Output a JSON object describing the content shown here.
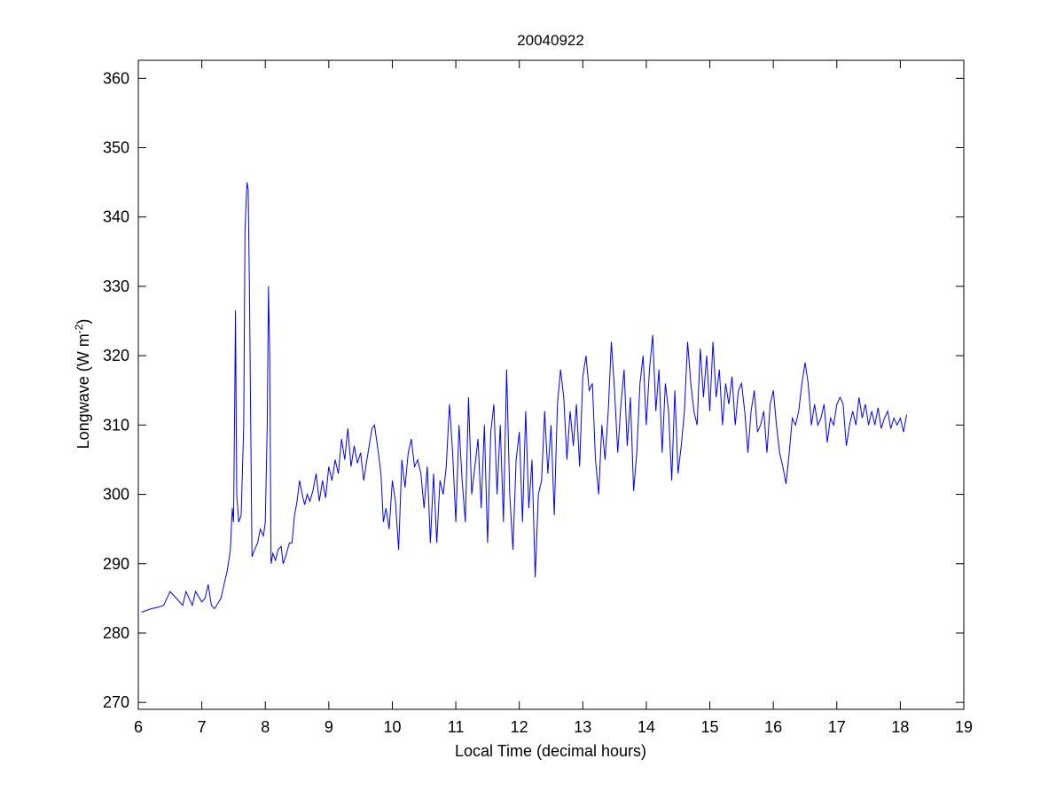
{
  "chart_data": {
    "type": "line",
    "title": "20040922",
    "xlabel": "Local Time (decimal hours)",
    "ylabel": {
      "base": "Longwave (W m",
      "sup": "-2",
      "close": ")"
    },
    "xlim": [
      6,
      19
    ],
    "ylim": [
      269,
      362.6
    ],
    "xticks": [
      6,
      7,
      8,
      9,
      10,
      11,
      12,
      13,
      14,
      15,
      16,
      17,
      18,
      19
    ],
    "yticks": [
      270,
      280,
      290,
      300,
      310,
      320,
      330,
      340,
      350,
      360
    ],
    "grid": false,
    "line_color": "#0000ff",
    "series": [
      {
        "name": "Longwave",
        "x": [
          6.05,
          6.2,
          6.3,
          6.4,
          6.5,
          6.6,
          6.7,
          6.75,
          6.85,
          6.9,
          7.0,
          7.05,
          7.1,
          7.15,
          7.2,
          7.3,
          7.35,
          7.4,
          7.45,
          7.48,
          7.5,
          7.52,
          7.53,
          7.55,
          7.58,
          7.62,
          7.66,
          7.68,
          7.71,
          7.73,
          7.75,
          7.77,
          7.79,
          7.83,
          7.88,
          7.92,
          7.97,
          8.0,
          8.03,
          8.05,
          8.07,
          8.09,
          8.12,
          8.16,
          8.2,
          8.25,
          8.28,
          8.32,
          8.38,
          8.42,
          8.46,
          8.5,
          8.54,
          8.58,
          8.62,
          8.66,
          8.7,
          8.75,
          8.8,
          8.85,
          8.9,
          8.95,
          9.0,
          9.05,
          9.1,
          9.15,
          9.2,
          9.25,
          9.3,
          9.35,
          9.4,
          9.45,
          9.5,
          9.55,
          9.6,
          9.68,
          9.72,
          9.78,
          9.82,
          9.86,
          9.9,
          9.95,
          10.0,
          10.05,
          10.1,
          10.15,
          10.2,
          10.25,
          10.3,
          10.35,
          10.4,
          10.45,
          10.5,
          10.55,
          10.6,
          10.65,
          10.7,
          10.75,
          10.8,
          10.85,
          10.9,
          10.95,
          11.0,
          11.05,
          11.1,
          11.15,
          11.2,
          11.25,
          11.3,
          11.35,
          11.4,
          11.45,
          11.5,
          11.55,
          11.6,
          11.65,
          11.7,
          11.75,
          11.8,
          11.85,
          11.9,
          11.95,
          12.0,
          12.05,
          12.1,
          12.15,
          12.2,
          12.25,
          12.3,
          12.35,
          12.4,
          12.45,
          12.5,
          12.55,
          12.6,
          12.65,
          12.7,
          12.75,
          12.8,
          12.85,
          12.9,
          12.95,
          13.0,
          13.05,
          13.1,
          13.15,
          13.2,
          13.25,
          13.3,
          13.35,
          13.4,
          13.45,
          13.5,
          13.55,
          13.6,
          13.65,
          13.7,
          13.75,
          13.8,
          13.85,
          13.9,
          13.95,
          14.0,
          14.05,
          14.1,
          14.15,
          14.2,
          14.25,
          14.3,
          14.35,
          14.4,
          14.45,
          14.5,
          14.55,
          14.6,
          14.65,
          14.7,
          14.75,
          14.8,
          14.85,
          14.9,
          14.95,
          15.0,
          15.05,
          15.1,
          15.15,
          15.2,
          15.25,
          15.3,
          15.35,
          15.4,
          15.45,
          15.5,
          15.55,
          15.6,
          15.65,
          15.7,
          15.75,
          15.8,
          15.85,
          15.9,
          15.95,
          16.0,
          16.05,
          16.1,
          16.15,
          16.2,
          16.25,
          16.3,
          16.35,
          16.4,
          16.45,
          16.5,
          16.55,
          16.6,
          16.65,
          16.7,
          16.75,
          16.8,
          16.85,
          16.9,
          16.95,
          17.0,
          17.05,
          17.1,
          17.15,
          17.2,
          17.25,
          17.3,
          17.35,
          17.4,
          17.45,
          17.5,
          17.55,
          17.6,
          17.65,
          17.7,
          17.75,
          17.8,
          17.85,
          17.9,
          17.95,
          18.0,
          18.05,
          18.1
        ],
        "y": [
          283,
          283.5,
          283.7,
          284,
          286,
          285,
          284,
          286,
          284,
          286,
          284.5,
          285,
          287,
          284,
          283.5,
          285,
          287,
          289,
          292,
          298,
          296,
          316,
          326.5,
          300,
          296,
          297,
          310,
          338,
          345,
          344,
          330,
          310,
          291,
          292,
          293,
          295,
          294,
          296,
          310,
          330,
          320,
          290,
          291.5,
          290.5,
          292,
          292.5,
          290,
          291,
          293,
          293,
          297,
          299,
          302,
          300,
          298.5,
          300,
          299,
          300.5,
          303,
          299,
          302,
          299.5,
          304,
          302,
          305,
          303,
          308,
          305,
          309.5,
          304,
          307,
          304.5,
          306,
          302,
          305,
          309.5,
          310,
          306,
          303,
          296,
          298,
          295,
          302,
          299,
          292,
          305,
          301,
          306,
          308,
          304,
          305,
          303,
          298,
          304,
          293,
          303,
          293,
          302,
          300,
          304,
          313,
          306,
          296,
          310,
          302,
          296,
          314,
          300,
          304,
          308,
          298,
          310,
          293,
          309,
          313,
          300,
          310,
          296,
          318,
          300,
          292,
          305,
          309,
          296,
          312,
          298,
          305,
          288,
          300,
          302,
          312,
          303,
          310,
          297,
          313,
          318,
          314,
          305,
          312,
          307,
          313,
          304,
          317,
          320,
          315,
          316,
          305,
          300,
          310,
          305,
          312,
          322,
          315,
          306,
          313,
          318,
          307,
          314,
          300.5,
          306,
          316,
          320,
          310,
          318,
          323,
          312,
          318,
          306,
          316,
          312,
          302,
          315,
          303,
          307,
          312,
          322,
          316,
          312,
          310,
          321,
          314,
          320,
          312,
          322,
          314,
          318,
          310,
          316,
          313,
          317,
          310,
          315,
          316,
          312,
          306,
          312,
          315,
          309,
          310,
          312,
          306,
          313,
          315,
          310,
          306,
          304,
          301.5,
          306,
          311,
          310,
          312,
          316,
          319,
          316,
          310,
          313,
          310,
          311,
          313,
          307.5,
          311,
          310,
          313,
          314,
          313,
          307,
          310,
          312,
          310,
          314,
          311,
          313,
          310,
          312,
          310,
          312.5,
          309.5,
          311,
          312,
          309.5,
          311,
          310,
          311,
          309,
          311.5
        ]
      }
    ]
  }
}
